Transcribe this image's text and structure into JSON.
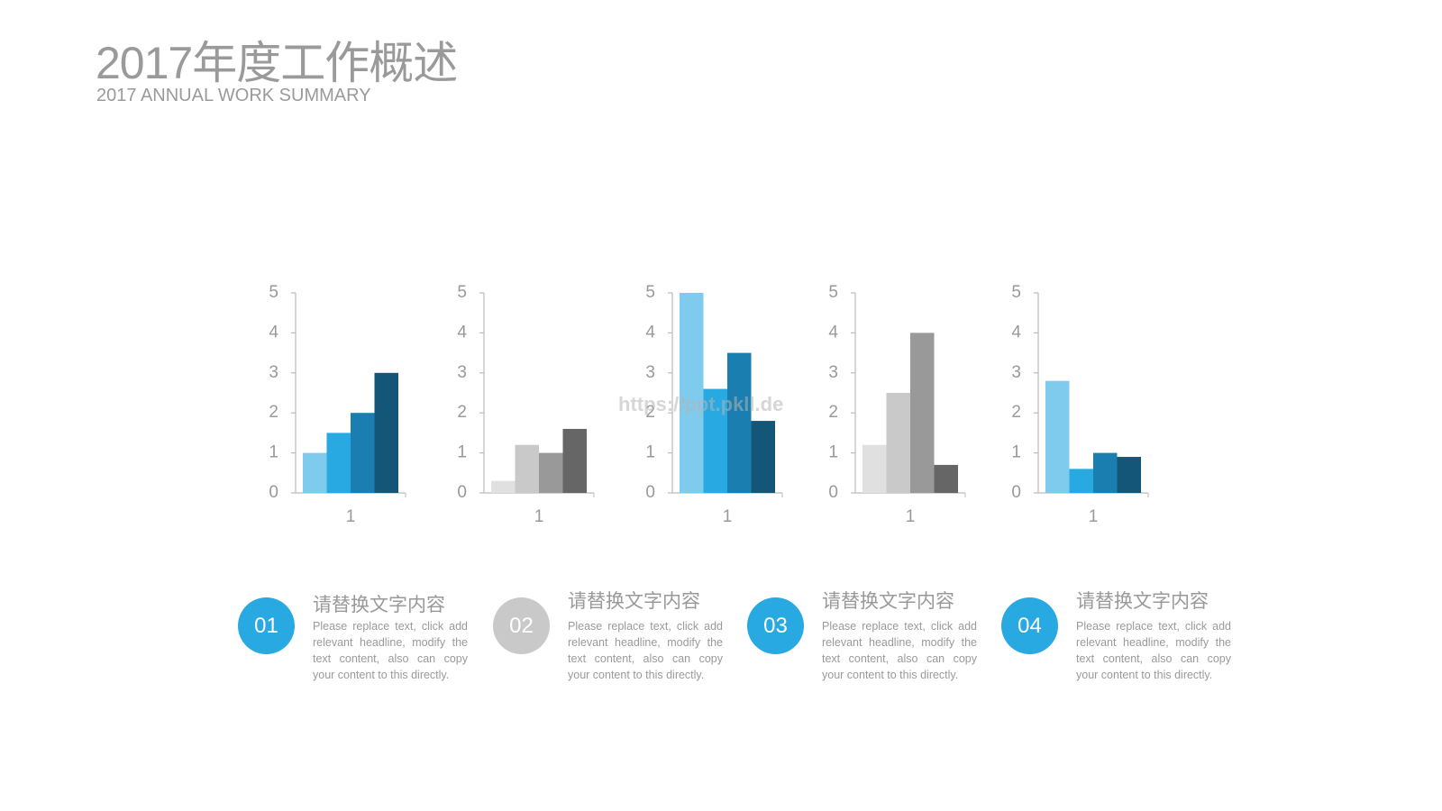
{
  "header": {
    "title": "2017年度工作概述",
    "subtitle": "2017 ANNUAL WORK SUMMARY"
  },
  "watermark": "https://ppt.pkll.de",
  "chart_data": [
    {
      "type": "bar",
      "categories": [
        "1"
      ],
      "ylim": [
        0,
        5
      ],
      "yticks": [
        0,
        1,
        2,
        3,
        4,
        5
      ],
      "series": [
        {
          "color": "#7fcbee",
          "values": [
            1
          ]
        },
        {
          "color": "#29a9e1",
          "values": [
            1.5
          ]
        },
        {
          "color": "#1a7fb0",
          "values": [
            2
          ]
        },
        {
          "color": "#135677",
          "values": [
            3
          ]
        }
      ]
    },
    {
      "type": "bar",
      "categories": [
        "1"
      ],
      "ylim": [
        0,
        5
      ],
      "yticks": [
        0,
        1,
        2,
        3,
        4,
        5
      ],
      "series": [
        {
          "color": "#e0e0e0",
          "values": [
            0.3
          ]
        },
        {
          "color": "#c9c9c9",
          "values": [
            1.2
          ]
        },
        {
          "color": "#999999",
          "values": [
            1
          ]
        },
        {
          "color": "#666666",
          "values": [
            1.6
          ]
        }
      ]
    },
    {
      "type": "bar",
      "categories": [
        "1"
      ],
      "ylim": [
        0,
        5
      ],
      "yticks": [
        0,
        1,
        2,
        3,
        4,
        5
      ],
      "series": [
        {
          "color": "#7fcbee",
          "values": [
            5
          ]
        },
        {
          "color": "#29a9e1",
          "values": [
            2.6
          ]
        },
        {
          "color": "#1a7fb0",
          "values": [
            3.5
          ]
        },
        {
          "color": "#135677",
          "values": [
            1.8
          ]
        }
      ]
    },
    {
      "type": "bar",
      "categories": [
        "1"
      ],
      "ylim": [
        0,
        5
      ],
      "yticks": [
        0,
        1,
        2,
        3,
        4,
        5
      ],
      "series": [
        {
          "color": "#e0e0e0",
          "values": [
            1.2
          ]
        },
        {
          "color": "#c9c9c9",
          "values": [
            2.5
          ]
        },
        {
          "color": "#999999",
          "values": [
            4
          ]
        },
        {
          "color": "#666666",
          "values": [
            0.7
          ]
        }
      ]
    },
    {
      "type": "bar",
      "categories": [
        "1"
      ],
      "ylim": [
        0,
        5
      ],
      "yticks": [
        0,
        1,
        2,
        3,
        4,
        5
      ],
      "series": [
        {
          "color": "#7fcbee",
          "values": [
            2.8
          ]
        },
        {
          "color": "#29a9e1",
          "values": [
            0.6
          ]
        },
        {
          "color": "#1a7fb0",
          "values": [
            1
          ]
        },
        {
          "color": "#135677",
          "values": [
            0.9
          ]
        }
      ]
    }
  ],
  "items": [
    {
      "number": "01",
      "color": "#29a9e1",
      "title": "请替换文字内容",
      "text": "Please replace text, click add relevant headline, modify the text content, also can copy your content to this directly."
    },
    {
      "number": "02",
      "color": "#c9c9c9",
      "title": "请替换文字内容",
      "text": "Please replace text, click add relevant headline, modify the text content, also can copy your content to this directly."
    },
    {
      "number": "03",
      "color": "#29a9e1",
      "title": "请替换文字内容",
      "text": "Please replace text, click add relevant headline, modify the text content, also can copy your content to this directly."
    },
    {
      "number": "04",
      "color": "#29a9e1",
      "title": "请替换文字内容",
      "text": "Please replace text, click add relevant headline, modify the text content, also can copy your content to this directly."
    }
  ]
}
